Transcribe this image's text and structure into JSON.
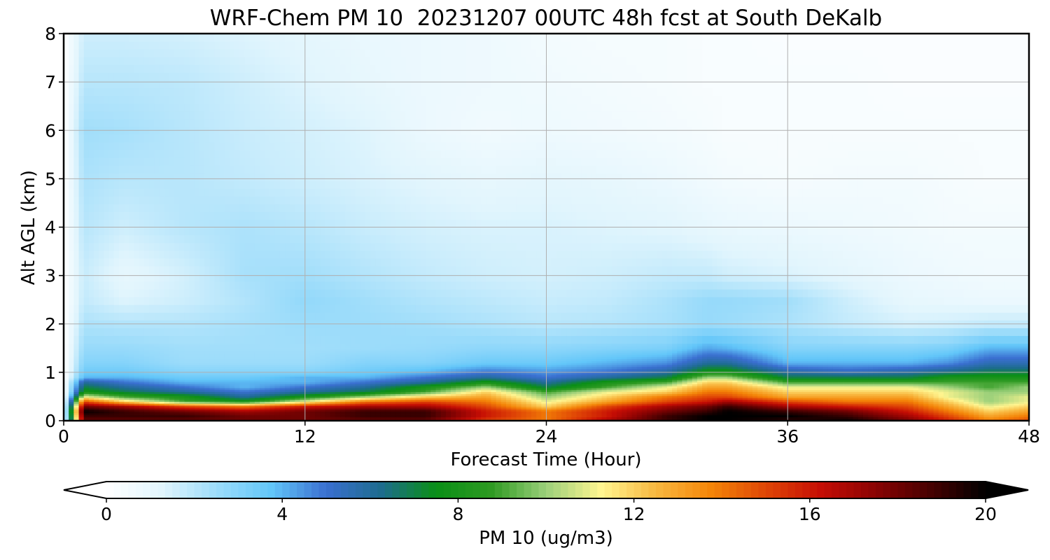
{
  "chart_data": {
    "type": "heatmap",
    "title": "WRF-Chem PM 10  20231207 00UTC 48h fcst at South DeKalb",
    "xlabel": "Forecast Time (Hour)",
    "ylabel": "Alt AGL (km)",
    "xlim": [
      0,
      48
    ],
    "ylim": [
      0,
      8
    ],
    "xticks": [
      0,
      12,
      24,
      36,
      48
    ],
    "yticks": [
      0,
      1,
      2,
      3,
      4,
      5,
      6,
      7,
      8
    ],
    "grid": true,
    "colorbar": {
      "label": "PM 10  (ug/m3)",
      "ticks": [
        0,
        4,
        8,
        12,
        16,
        20
      ],
      "range": [
        0,
        20
      ],
      "extend": "both",
      "orientation": "horizontal",
      "colors": [
        "#ffffff",
        "#e1f5fd",
        "#9cdcfa",
        "#62c6f9",
        "#3a6fd0",
        "#1d6c8e",
        "#0a8f16",
        "#2e9a22",
        "#9bd07a",
        "#fff590",
        "#f8b840",
        "#f48508",
        "#e04606",
        "#c50d04",
        "#8a0303",
        "#460101",
        "#000000"
      ]
    },
    "x": [
      0,
      1,
      3,
      6,
      9,
      12,
      15,
      18,
      21,
      24,
      27,
      30,
      32,
      33,
      36,
      39,
      42,
      44,
      46,
      48
    ],
    "y": [
      0,
      0.1,
      0.2,
      0.3,
      0.4,
      0.5,
      0.6,
      0.7,
      0.8,
      0.9,
      1.0,
      1.2,
      1.5,
      2.0,
      2.5,
      3.0,
      4.0,
      5.0,
      6.0,
      7.0,
      8.0
    ],
    "z": [
      [
        0,
        18,
        18,
        18,
        18,
        18,
        18,
        18,
        15,
        14,
        17,
        19,
        20,
        20,
        19,
        20,
        18,
        16,
        14,
        15
      ],
      [
        0,
        19,
        19,
        19,
        18,
        18,
        19,
        19,
        16,
        14,
        16,
        19,
        20,
        20,
        20,
        19,
        17,
        15,
        13,
        14
      ],
      [
        0,
        20,
        19,
        18,
        17,
        18,
        19,
        19,
        16,
        14,
        16,
        18,
        19,
        20,
        19,
        18,
        16,
        14,
        12,
        13
      ],
      [
        0,
        18,
        17,
        15,
        14,
        16,
        17,
        17,
        15,
        12,
        15,
        17,
        18,
        19,
        17,
        16,
        15,
        13,
        11,
        12
      ],
      [
        0,
        15,
        12,
        9,
        8,
        11,
        14,
        15,
        14,
        11,
        13,
        15,
        16,
        17,
        15,
        14,
        14,
        12,
        10,
        11
      ],
      [
        0,
        11,
        9,
        8,
        6,
        8,
        10,
        12,
        13,
        10,
        12,
        14,
        15,
        15,
        13,
        13,
        13,
        11,
        10,
        11
      ],
      [
        0,
        8,
        7,
        6,
        5,
        6,
        7,
        9,
        12,
        9,
        11,
        12,
        14,
        14,
        12,
        12,
        12,
        11,
        10,
        10
      ],
      [
        0,
        7,
        6,
        5,
        4,
        5,
        6,
        8,
        10,
        7,
        9,
        11,
        13,
        13,
        11,
        11,
        11,
        10,
        9,
        10
      ],
      [
        0,
        6,
        5,
        4,
        4,
        4,
        5,
        6,
        8,
        6,
        8,
        9,
        12,
        12,
        9,
        9,
        9,
        9,
        9,
        9
      ],
      [
        0,
        4,
        4,
        3.5,
        3.5,
        4,
        4,
        5,
        6,
        5,
        6,
        7,
        10,
        10,
        7,
        7,
        7,
        8,
        8,
        8
      ],
      [
        0,
        3.5,
        3.5,
        3,
        3,
        3,
        3.5,
        4,
        5,
        4.5,
        5,
        6,
        8,
        8,
        6,
        5.5,
        6,
        6.5,
        7,
        7
      ],
      [
        0,
        3,
        3,
        2.5,
        2.5,
        2.5,
        3,
        3,
        3.5,
        3.5,
        4,
        4.5,
        6,
        6,
        4,
        4,
        4,
        4.5,
        5.5,
        5.5
      ],
      [
        0,
        2.6,
        2.6,
        2.4,
        2.4,
        2.4,
        2.5,
        2.6,
        2.8,
        2.8,
        3,
        3.2,
        4.2,
        4,
        3,
        3,
        3,
        3.2,
        4,
        4
      ],
      [
        0,
        2.2,
        2.1,
        2.1,
        2.3,
        2.5,
        2.5,
        2.4,
        2.2,
        2.0,
        2.1,
        2.3,
        2.6,
        2.5,
        2.2,
        1.8,
        1.5,
        1.6,
        1.8,
        1.8
      ],
      [
        0,
        1.8,
        1.3,
        1.6,
        2.1,
        2.7,
        2.4,
        2.1,
        1.9,
        1.7,
        1.8,
        2.2,
        2.6,
        2.6,
        2.4,
        1.6,
        1.0,
        0.9,
        0.8,
        0.8
      ],
      [
        0,
        1.7,
        1.0,
        1.5,
        2.3,
        2.4,
        2.1,
        1.8,
        1.6,
        1.5,
        1.6,
        1.8,
        1.8,
        1.6,
        1.4,
        1.1,
        0.8,
        0.7,
        0.6,
        0.6
      ],
      [
        0,
        2.0,
        1.6,
        2.0,
        2.2,
        2.0,
        1.7,
        1.5,
        1.4,
        1.4,
        1.3,
        1.2,
        1.0,
        0.9,
        0.8,
        0.7,
        0.6,
        0.5,
        0.5,
        0.5
      ],
      [
        0,
        2.2,
        2.0,
        2.0,
        1.8,
        1.6,
        1.4,
        1.2,
        1.0,
        1.1,
        1.0,
        0.8,
        0.6,
        0.5,
        0.4,
        0.5,
        0.5,
        0.4,
        0.3,
        0.3
      ],
      [
        0,
        2.4,
        2.3,
        2.0,
        1.7,
        1.5,
        1.3,
        0.8,
        0.6,
        0.7,
        0.6,
        0.5,
        0.4,
        0.3,
        0.3,
        0.3,
        0.3,
        0.3,
        0.3,
        0.3
      ],
      [
        0,
        2.0,
        2.0,
        1.9,
        1.6,
        1.3,
        1.0,
        0.8,
        0.7,
        0.6,
        0.5,
        0.4,
        0.3,
        0.3,
        0.3,
        0.3,
        0.2,
        0.2,
        0.2,
        0.2
      ],
      [
        0,
        1.6,
        1.6,
        1.5,
        1.3,
        1.1,
        0.9,
        0.8,
        0.7,
        0.5,
        0.4,
        0.4,
        0.3,
        0.3,
        0.2,
        0.2,
        0.2,
        0.2,
        0.2,
        0.2
      ]
    ]
  }
}
